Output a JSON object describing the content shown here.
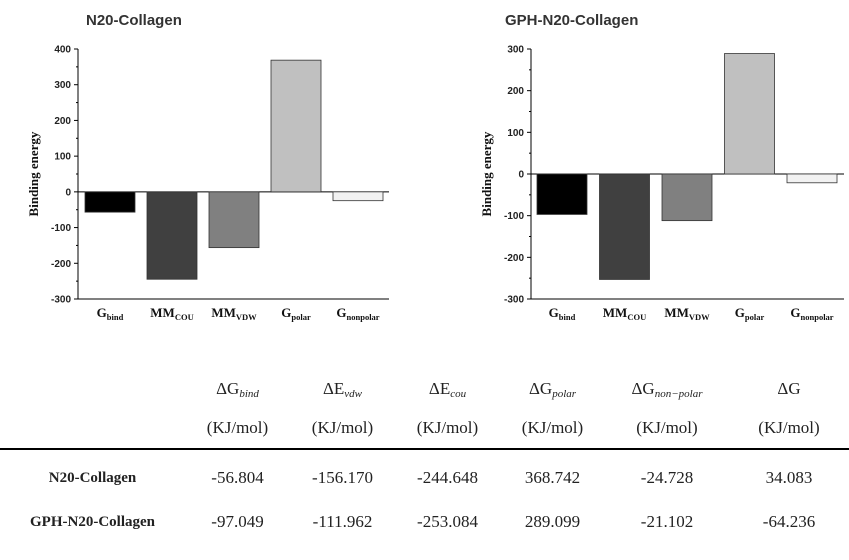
{
  "chart_data": [
    {
      "type": "bar",
      "title": "N20-Collagen",
      "ylabel": "Binding energy",
      "xlabel": "",
      "ylim": [
        -300,
        400
      ],
      "yticks": [
        -300,
        -200,
        -100,
        0,
        100,
        200,
        300,
        400
      ],
      "categories": [
        {
          "main": "G",
          "sub": "bind"
        },
        {
          "main": "MM",
          "sub": "COU"
        },
        {
          "main": "MM",
          "sub": "VDW"
        },
        {
          "main": "G",
          "sub": "polar"
        },
        {
          "main": "G",
          "sub": "nonpolar"
        }
      ],
      "values": [
        -56.804,
        -244.648,
        -156.17,
        368.742,
        -24.728
      ],
      "colors": [
        "#000000",
        "#404040",
        "#808080",
        "#c0c0c0",
        "#f2f2f2"
      ]
    },
    {
      "type": "bar",
      "title": "GPH-N20-Collagen",
      "ylabel": "Binding energy",
      "xlabel": "",
      "ylim": [
        -300,
        300
      ],
      "yticks": [
        -300,
        -200,
        -100,
        0,
        100,
        200,
        300
      ],
      "categories": [
        {
          "main": "G",
          "sub": "bind"
        },
        {
          "main": "MM",
          "sub": "COU"
        },
        {
          "main": "MM",
          "sub": "VDW"
        },
        {
          "main": "G",
          "sub": "polar"
        },
        {
          "main": "G",
          "sub": "nonpolar"
        }
      ],
      "values": [
        -97.049,
        -253.084,
        -111.962,
        289.099,
        -21.102
      ],
      "colors": [
        "#000000",
        "#404040",
        "#808080",
        "#c0c0c0",
        "#f2f2f2"
      ]
    }
  ],
  "table": {
    "headers": [
      {
        "main": "ΔG",
        "sub": "bind"
      },
      {
        "main": "ΔE",
        "sub": "vdw"
      },
      {
        "main": "ΔE",
        "sub": "cou"
      },
      {
        "main": "ΔG",
        "sub": "polar"
      },
      {
        "main": "ΔG",
        "sub": "non−polar"
      },
      {
        "main": "ΔG",
        "sub": ""
      }
    ],
    "unit": "(KJ/mol)",
    "rows": [
      {
        "name": "N20-Collagen",
        "values": [
          "-56.804",
          "-156.170",
          "-244.648",
          "368.742",
          "-24.728",
          "34.083"
        ]
      },
      {
        "name": "GPH-N20-Collagen",
        "values": [
          "-97.049",
          "-111.962",
          "-253.084",
          "289.099",
          "-21.102",
          "-64.236"
        ]
      }
    ]
  }
}
